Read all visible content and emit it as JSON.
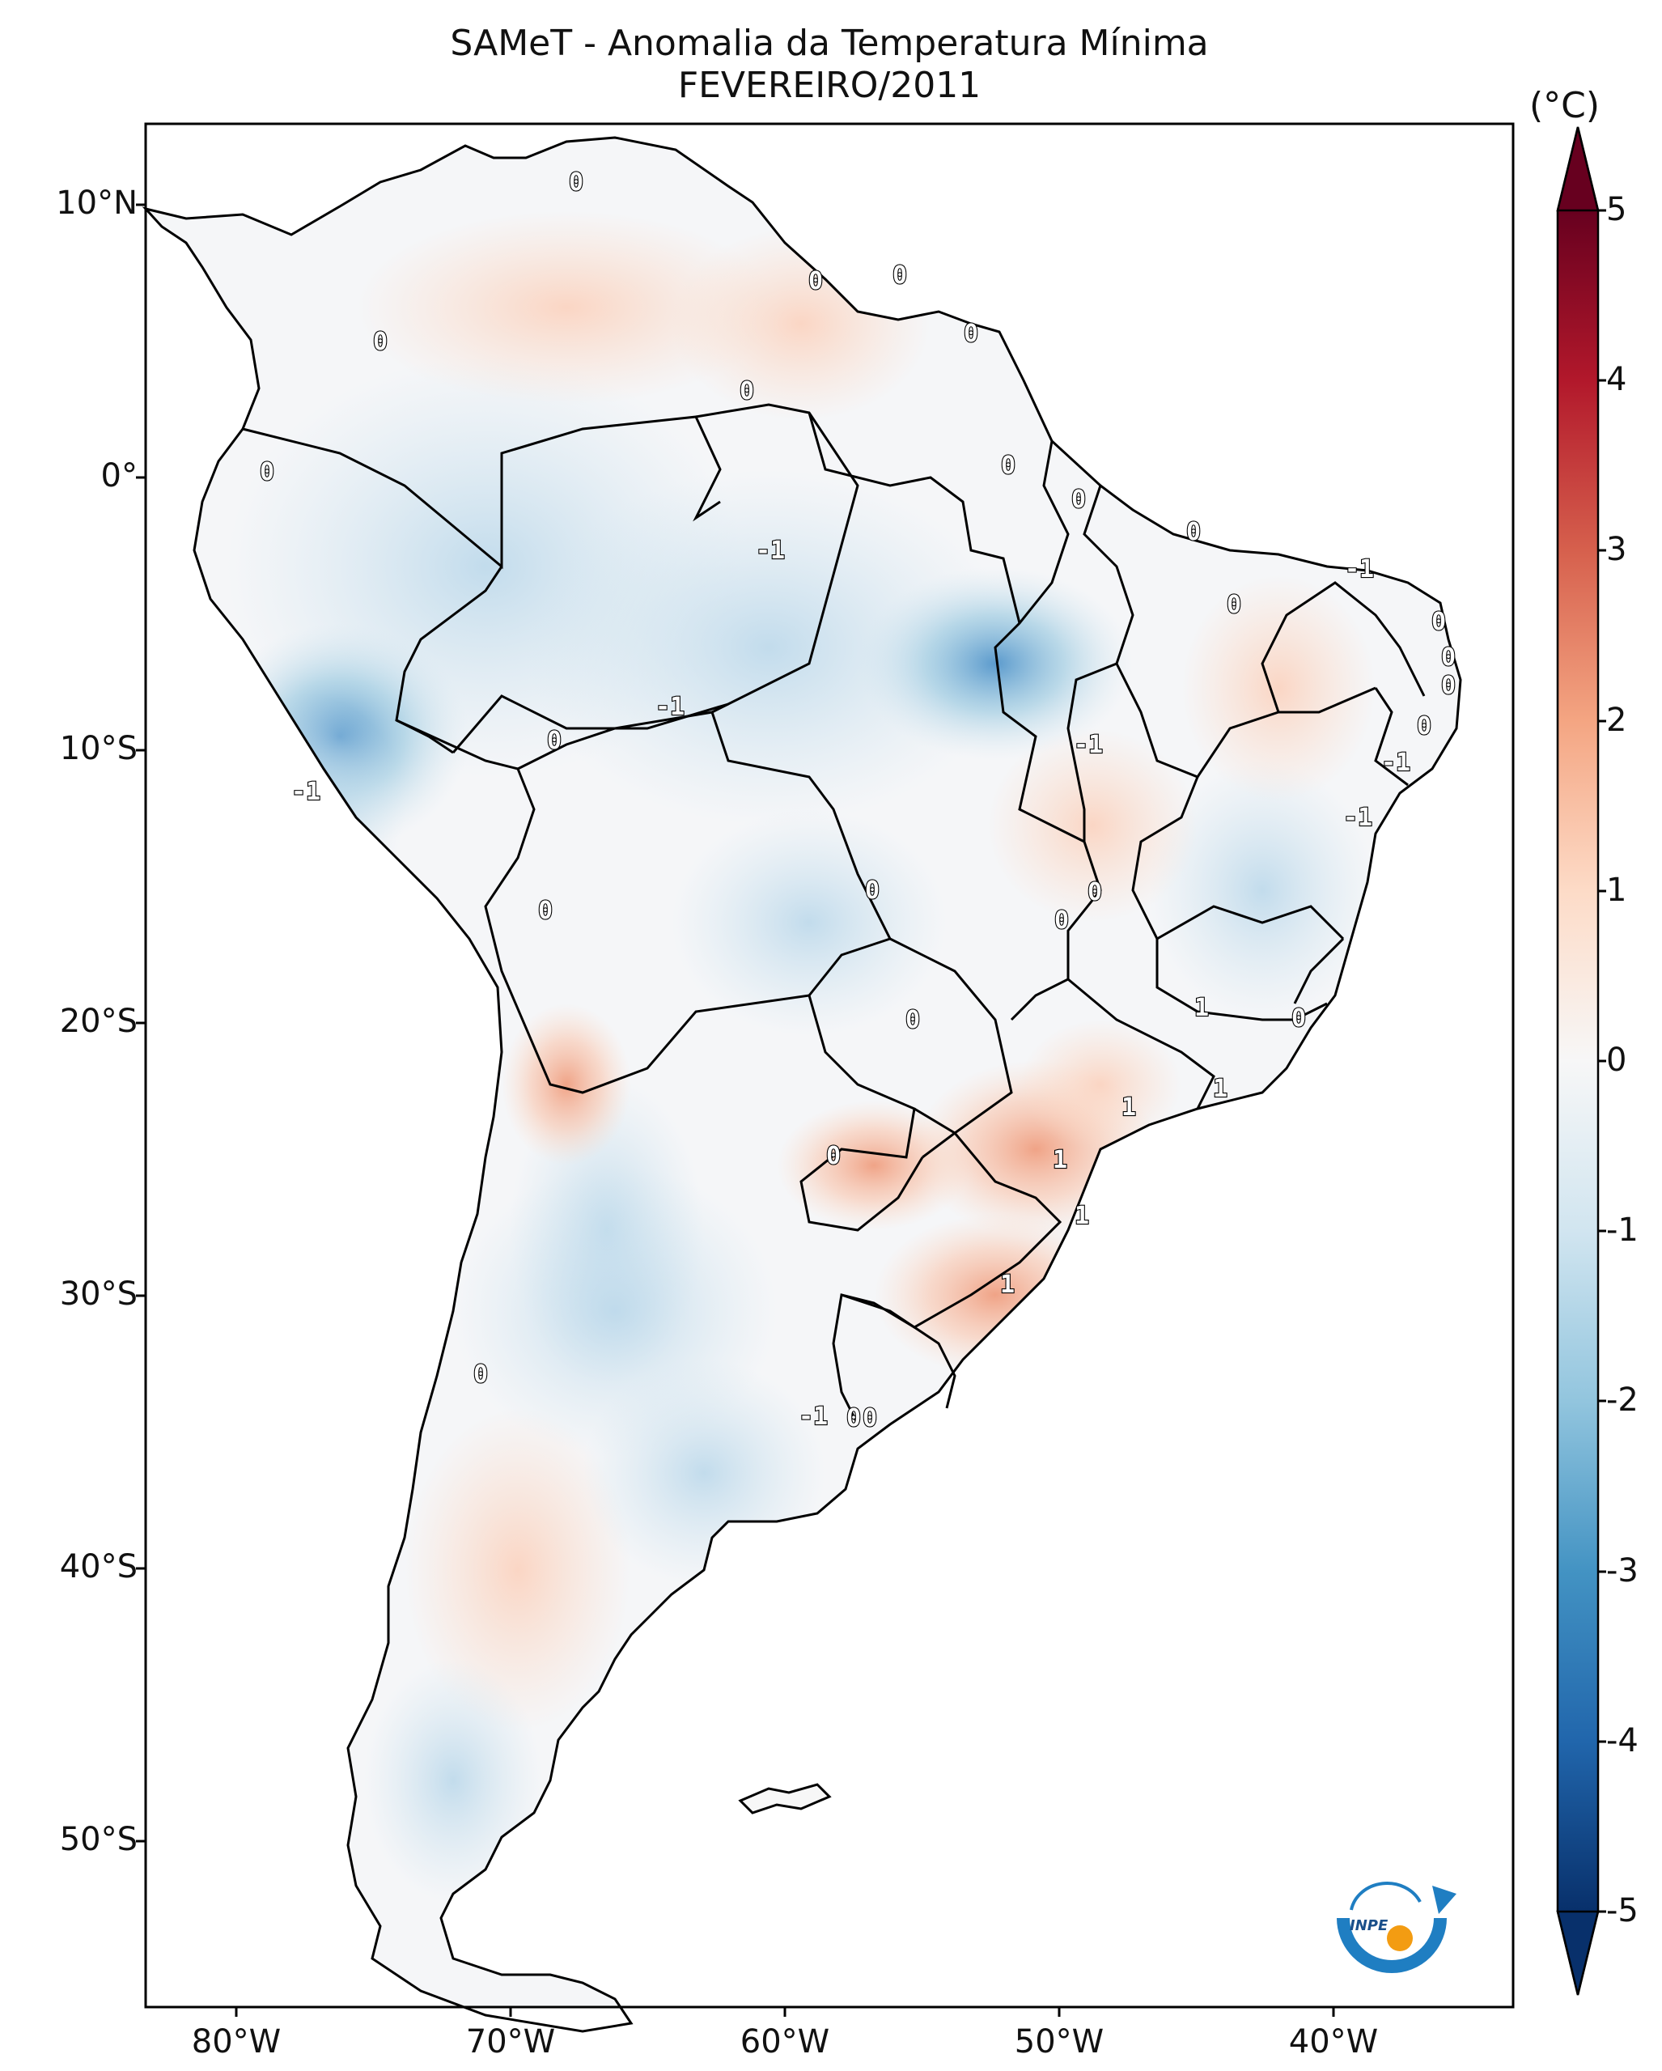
{
  "title": {
    "line1": "SAMeT - Anomalia da Temperatura Mínima",
    "line2": "FEVEREIRO/2011"
  },
  "colorbar": {
    "unit": "(°C)",
    "ticks": [
      "5",
      "4",
      "3",
      "2",
      "1",
      "0",
      "-1",
      "-2",
      "-3",
      "-4",
      "-5"
    ],
    "colormap": "RdBu_r",
    "extend": "both",
    "min": -5,
    "max": 5
  },
  "axes": {
    "lat_labels": [
      "10°N",
      "0°",
      "10°S",
      "20°S",
      "30°S",
      "40°S",
      "50°S"
    ],
    "lon_labels": [
      "80°W",
      "70°W",
      "60°W",
      "50°W",
      "40°W"
    ]
  },
  "contour_labels": [
    {
      "text": "0"
    },
    {
      "text": "0"
    },
    {
      "text": "0"
    },
    {
      "text": "0"
    },
    {
      "text": "0"
    },
    {
      "text": "0"
    },
    {
      "text": "0"
    },
    {
      "text": "0"
    },
    {
      "text": "0"
    },
    {
      "text": "-1"
    },
    {
      "text": "0"
    },
    {
      "text": "-1"
    },
    {
      "text": "0"
    },
    {
      "text": "0"
    },
    {
      "text": "0"
    },
    {
      "text": "0"
    },
    {
      "text": "-1"
    },
    {
      "text": "-1"
    },
    {
      "text": "0"
    },
    {
      "text": "-1"
    },
    {
      "text": "-1"
    },
    {
      "text": "-1"
    },
    {
      "text": "0"
    },
    {
      "text": "0"
    },
    {
      "text": "0"
    },
    {
      "text": "0"
    },
    {
      "text": "0"
    },
    {
      "text": "0"
    },
    {
      "text": "1"
    },
    {
      "text": "0"
    },
    {
      "text": "1"
    },
    {
      "text": "1"
    },
    {
      "text": "1"
    },
    {
      "text": "1"
    },
    {
      "text": "1"
    },
    {
      "text": "0"
    },
    {
      "text": "0"
    },
    {
      "text": "-1"
    },
    {
      "text": "0"
    },
    {
      "text": "0"
    }
  ],
  "logo": {
    "text": "INPE"
  }
}
